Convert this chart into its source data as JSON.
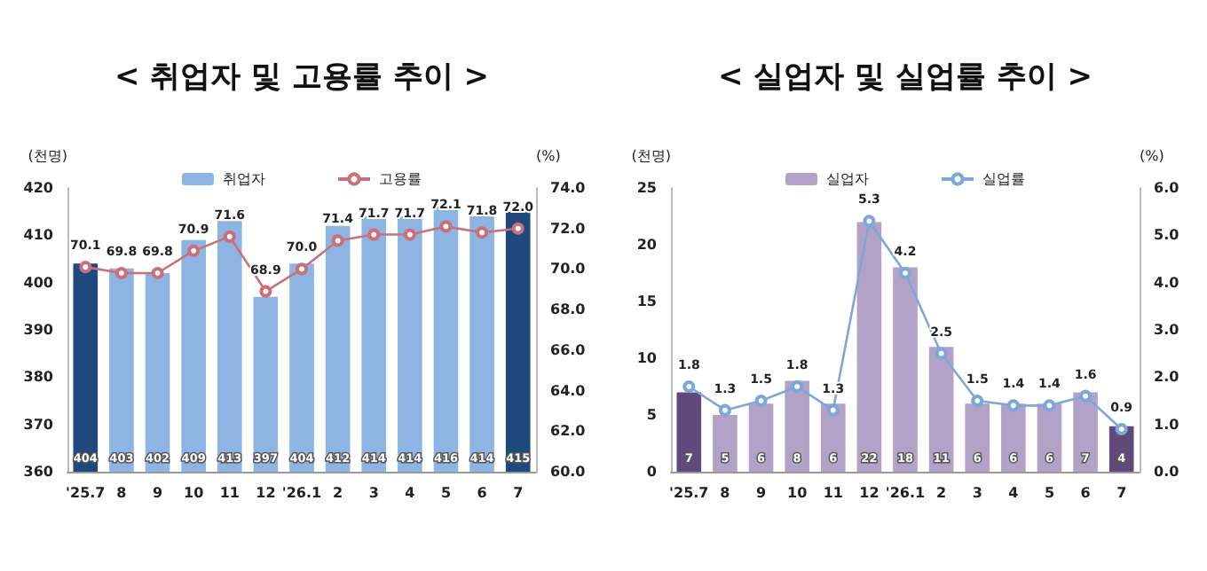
{
  "chart_data": [
    {
      "type": "bar",
      "title": "< 취업자 및 고용률 추이 >",
      "ylabel": "(천명)",
      "y2label": "(%)",
      "categories": [
        "'25.7",
        "8",
        "9",
        "10",
        "11",
        "12",
        "'26.1",
        "2",
        "3",
        "4",
        "5",
        "6",
        "7"
      ],
      "series": [
        {
          "name": "취업자",
          "color": "#8db4e2",
          "colors": [
            "#1f497d",
            "#8db4e2",
            "#8db4e2",
            "#8db4e2",
            "#8db4e2",
            "#8db4e2",
            "#8db4e2",
            "#8db4e2",
            "#8db4e2",
            "#8db4e2",
            "#8db4e2",
            "#8db4e2",
            "#1f497d"
          ],
          "values": [
            404,
            403,
            402,
            409,
            413,
            397,
            404,
            412,
            414,
            414,
            416,
            414,
            415
          ],
          "value_labels": [
            "404",
            "403",
            "402",
            "409",
            "413",
            "397",
            "404",
            "412",
            "414",
            "414",
            "416",
            "414",
            "415"
          ]
        },
        {
          "name": "고용률",
          "type": "line",
          "axis": "y2",
          "color": "#c9707a",
          "values": [
            70.1,
            69.8,
            69.8,
            70.9,
            71.6,
            68.9,
            70.0,
            71.4,
            71.7,
            71.7,
            72.1,
            71.8,
            72.0
          ],
          "value_labels": [
            "70.1",
            "69.8",
            "69.8",
            "70.9",
            "71.6",
            "68.9",
            "70.0",
            "71.4",
            "71.7",
            "71.7",
            "72.1",
            "71.8",
            "72.0"
          ]
        }
      ],
      "ylim": [
        360,
        420
      ],
      "yticks": [
        360,
        370,
        380,
        390,
        400,
        410,
        420
      ],
      "y2lim": [
        60,
        74
      ],
      "y2ticks": [
        {
          "value": 60,
          "label": "60.0"
        },
        {
          "value": 62,
          "label": "62.0"
        },
        {
          "value": 64,
          "label": "64.0"
        },
        {
          "value": 66,
          "label": "66.0"
        },
        {
          "value": 68,
          "label": "68.0"
        },
        {
          "value": 70,
          "label": "70.0"
        },
        {
          "value": 72,
          "label": "72.0"
        },
        {
          "value": 74,
          "label": "74.0"
        }
      ],
      "legend": "top",
      "marker": "circle",
      "grid": false
    },
    {
      "type": "bar",
      "title": "< 실업자 및 실업률 추이 >",
      "ylabel": "(천명)",
      "y2label": "(%)",
      "categories": [
        "'25.7",
        "8",
        "9",
        "10",
        "11",
        "12",
        "'26.1",
        "2",
        "3",
        "4",
        "5",
        "6",
        "7"
      ],
      "series": [
        {
          "name": "실업자",
          "color": "#b3a2c7",
          "colors": [
            "#604a7b",
            "#b3a2c7",
            "#b3a2c7",
            "#b3a2c7",
            "#b3a2c7",
            "#b3a2c7",
            "#b3a2c7",
            "#b3a2c7",
            "#b3a2c7",
            "#b3a2c7",
            "#b3a2c7",
            "#b3a2c7",
            "#604a7b"
          ],
          "values": [
            7,
            5,
            6,
            8,
            6,
            22,
            18,
            11,
            6,
            6,
            6,
            7,
            4
          ],
          "value_labels": [
            "7",
            "5",
            "6",
            "8",
            "6",
            "22",
            "18",
            "11",
            "6",
            "6",
            "6",
            "7",
            "4"
          ]
        },
        {
          "name": "실업률",
          "type": "line",
          "axis": "y2",
          "color": "#7fa6d8",
          "values": [
            1.8,
            1.3,
            1.5,
            1.8,
            1.3,
            5.3,
            4.2,
            2.5,
            1.5,
            1.4,
            1.4,
            1.6,
            0.9
          ],
          "value_labels": [
            "1.8",
            "1.3",
            "1.5",
            "1.8",
            "1.3",
            "5.3",
            "4.2",
            "2.5",
            "1.5",
            "1.4",
            "1.4",
            "1.6",
            "0.9"
          ]
        }
      ],
      "ylim": [
        0,
        25
      ],
      "yticks": [
        0,
        5,
        10,
        15,
        20,
        25
      ],
      "y2lim": [
        0,
        6
      ],
      "y2ticks": [
        {
          "value": 0,
          "label": "0.0"
        },
        {
          "value": 1,
          "label": "1.0"
        },
        {
          "value": 2,
          "label": "2.0"
        },
        {
          "value": 3,
          "label": "3.0"
        },
        {
          "value": 4,
          "label": "4.0"
        },
        {
          "value": 5,
          "label": "5.0"
        },
        {
          "value": 6,
          "label": "6.0"
        }
      ],
      "legend": "top",
      "marker": "circle",
      "grid": false
    }
  ]
}
